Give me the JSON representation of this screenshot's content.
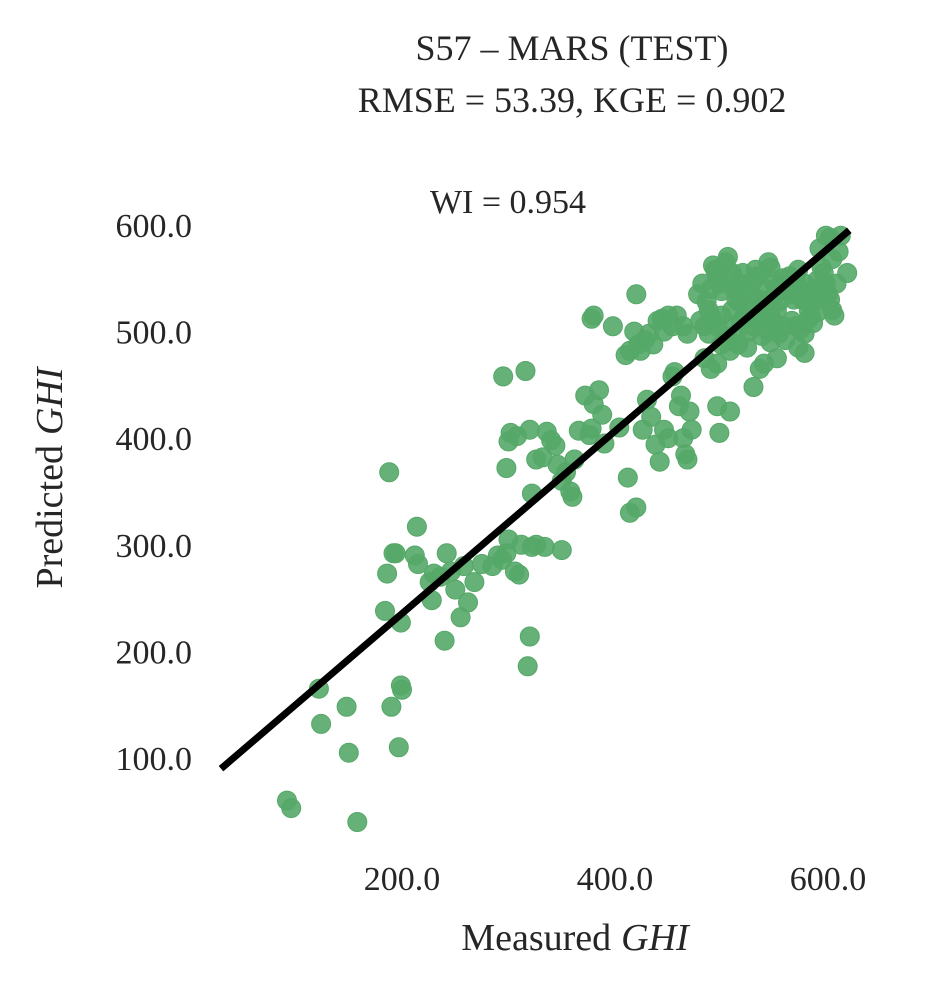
{
  "chart_data": {
    "type": "scatter",
    "title": "S57 – MARS (TEST)",
    "subtitle": "RMSE = 53.39, KGE = 0.902",
    "annotation": "WI = 0.954",
    "xlabel": "Measured",
    "xlabel_italic": "GHI",
    "ylabel": "Predicted",
    "ylabel_italic": "GHI",
    "xlim": [
      30,
      630
    ],
    "ylim": [
      30,
      625
    ],
    "x_ticks": [
      200,
      400,
      600
    ],
    "x_tick_labels": [
      "200.0",
      "400.0",
      "600.0"
    ],
    "y_ticks": [
      100,
      200,
      300,
      400,
      500,
      600
    ],
    "y_tick_labels": [
      "100.0",
      "200.0",
      "300.0",
      "400.0",
      "500.0",
      "600.0"
    ],
    "grid": false,
    "point_color": "#55a868",
    "line_color": "#000000",
    "fit_line": {
      "x": [
        30,
        620
      ],
      "y": [
        90,
        595
      ]
    },
    "series": [
      {
        "points": [
          [
            92,
            60
          ],
          [
            96,
            53
          ],
          [
            158,
            40
          ],
          [
            122,
            165
          ],
          [
            124,
            132
          ],
          [
            148,
            148
          ],
          [
            150,
            105
          ],
          [
            188,
            368
          ],
          [
            190,
            148
          ],
          [
            197,
            110
          ],
          [
            199,
            168
          ],
          [
            200,
            164
          ],
          [
            184,
            238
          ],
          [
            186,
            273
          ],
          [
            192,
            292
          ],
          [
            194,
            292
          ],
          [
            199,
            227
          ],
          [
            212,
            290
          ],
          [
            214,
            317
          ],
          [
            215,
            282
          ],
          [
            226,
            265
          ],
          [
            228,
            248
          ],
          [
            230,
            273
          ],
          [
            236,
            270
          ],
          [
            240,
            210
          ],
          [
            242,
            292
          ],
          [
            246,
            275
          ],
          [
            250,
            258
          ],
          [
            255,
            232
          ],
          [
            258,
            280
          ],
          [
            262,
            246
          ],
          [
            268,
            265
          ],
          [
            275,
            282
          ],
          [
            285,
            280
          ],
          [
            290,
            290
          ],
          [
            294,
            286
          ],
          [
            298,
            292
          ],
          [
            300,
            305
          ],
          [
            306,
            275
          ],
          [
            310,
            272
          ],
          [
            312,
            300
          ],
          [
            318,
            186
          ],
          [
            320,
            214
          ],
          [
            322,
            298
          ],
          [
            326,
            300
          ],
          [
            334,
            298
          ],
          [
            350,
            295
          ],
          [
            295,
            458
          ],
          [
            298,
            372
          ],
          [
            300,
            397
          ],
          [
            302,
            405
          ],
          [
            308,
            402
          ],
          [
            316,
            463
          ],
          [
            320,
            408
          ],
          [
            322,
            348
          ],
          [
            326,
            380
          ],
          [
            332,
            382
          ],
          [
            336,
            406
          ],
          [
            340,
            398
          ],
          [
            344,
            393
          ],
          [
            346,
            375
          ],
          [
            350,
            360
          ],
          [
            354,
            368
          ],
          [
            358,
            350
          ],
          [
            360,
            345
          ],
          [
            362,
            380
          ],
          [
            366,
            407
          ],
          [
            372,
            440
          ],
          [
            376,
            403
          ],
          [
            378,
            409
          ],
          [
            380,
            432
          ],
          [
            385,
            445
          ],
          [
            388,
            422
          ],
          [
            390,
            395
          ],
          [
            378,
            512
          ],
          [
            380,
            515
          ],
          [
            398,
            505
          ],
          [
            404,
            410
          ],
          [
            410,
            478
          ],
          [
            414,
            482
          ],
          [
            418,
            500
          ],
          [
            420,
            535
          ],
          [
            422,
            488
          ],
          [
            424,
            482
          ],
          [
            428,
            492
          ],
          [
            432,
            498
          ],
          [
            436,
            488
          ],
          [
            440,
            510
          ],
          [
            444,
            512
          ],
          [
            446,
            500
          ],
          [
            450,
            515
          ],
          [
            454,
            505
          ],
          [
            458,
            515
          ],
          [
            464,
            505
          ],
          [
            468,
            498
          ],
          [
            412,
            363
          ],
          [
            414,
            330
          ],
          [
            420,
            335
          ],
          [
            426,
            408
          ],
          [
            430,
            436
          ],
          [
            434,
            420
          ],
          [
            438,
            394
          ],
          [
            442,
            378
          ],
          [
            446,
            408
          ],
          [
            450,
            400
          ],
          [
            454,
            458
          ],
          [
            456,
            462
          ],
          [
            460,
            430
          ],
          [
            462,
            440
          ],
          [
            464,
            400
          ],
          [
            466,
            385
          ],
          [
            468,
            380
          ],
          [
            470,
            425
          ],
          [
            472,
            408
          ],
          [
            478,
            535
          ],
          [
            482,
            545
          ],
          [
            486,
            528
          ],
          [
            488,
            520
          ],
          [
            490,
            540
          ],
          [
            492,
            562
          ],
          [
            494,
            558
          ],
          [
            496,
            552
          ],
          [
            498,
            545
          ],
          [
            500,
            538
          ],
          [
            504,
            565
          ],
          [
            506,
            570
          ],
          [
            508,
            548
          ],
          [
            510,
            555
          ],
          [
            512,
            540
          ],
          [
            514,
            530
          ],
          [
            516,
            528
          ],
          [
            518,
            545
          ],
          [
            520,
            555
          ],
          [
            522,
            538
          ],
          [
            524,
            520
          ],
          [
            526,
            522
          ],
          [
            528,
            535
          ],
          [
            530,
            548
          ],
          [
            532,
            558
          ],
          [
            534,
            552
          ],
          [
            536,
            530
          ],
          [
            538,
            515
          ],
          [
            540,
            525
          ],
          [
            542,
            540
          ],
          [
            544,
            565
          ],
          [
            546,
            560
          ],
          [
            548,
            548
          ],
          [
            550,
            535
          ],
          [
            552,
            520
          ],
          [
            554,
            528
          ],
          [
            556,
            545
          ],
          [
            558,
            550
          ],
          [
            560,
            538
          ],
          [
            562,
            542
          ],
          [
            564,
            552
          ],
          [
            566,
            535
          ],
          [
            568,
            530
          ],
          [
            570,
            548
          ],
          [
            572,
            558
          ],
          [
            574,
            540
          ],
          [
            576,
            530
          ],
          [
            578,
            545
          ],
          [
            580,
            528
          ],
          [
            582,
            520
          ],
          [
            584,
            515
          ],
          [
            586,
            535
          ],
          [
            588,
            540
          ],
          [
            590,
            548
          ],
          [
            592,
            530
          ],
          [
            594,
            560
          ],
          [
            596,
            555
          ],
          [
            598,
            545
          ],
          [
            600,
            535
          ],
          [
            602,
            530
          ],
          [
            604,
            520
          ],
          [
            606,
            515
          ],
          [
            608,
            545
          ],
          [
            566,
            510
          ],
          [
            570,
            505
          ],
          [
            574,
            502
          ],
          [
            578,
            498
          ],
          [
            582,
            512
          ],
          [
            586,
            508
          ],
          [
            590,
            518
          ],
          [
            480,
            510
          ],
          [
            484,
            505
          ],
          [
            488,
            498
          ],
          [
            492,
            512
          ],
          [
            496,
            505
          ],
          [
            500,
            515
          ],
          [
            504,
            505
          ],
          [
            506,
            495
          ],
          [
            510,
            520
          ],
          [
            514,
            498
          ],
          [
            518,
            510
          ],
          [
            522,
            512
          ],
          [
            526,
            500
          ],
          [
            530,
            505
          ],
          [
            534,
            512
          ],
          [
            538,
            496
          ],
          [
            542,
            502
          ],
          [
            546,
            515
          ],
          [
            550,
            508
          ],
          [
            554,
            498
          ],
          [
            558,
            505
          ],
          [
            484,
            475
          ],
          [
            490,
            465
          ],
          [
            496,
            470
          ],
          [
            500,
            488
          ],
          [
            508,
            482
          ],
          [
            516,
            488
          ],
          [
            524,
            485
          ],
          [
            530,
            448
          ],
          [
            536,
            465
          ],
          [
            540,
            470
          ],
          [
            546,
            490
          ],
          [
            552,
            475
          ],
          [
            560,
            492
          ],
          [
            572,
            485
          ],
          [
            578,
            480
          ],
          [
            496,
            430
          ],
          [
            498,
            405
          ],
          [
            508,
            425
          ],
          [
            598,
            590
          ],
          [
            602,
            588
          ],
          [
            612,
            590
          ],
          [
            618,
            555
          ],
          [
            604,
            568
          ],
          [
            610,
            575
          ],
          [
            592,
            578
          ]
        ]
      }
    ]
  }
}
